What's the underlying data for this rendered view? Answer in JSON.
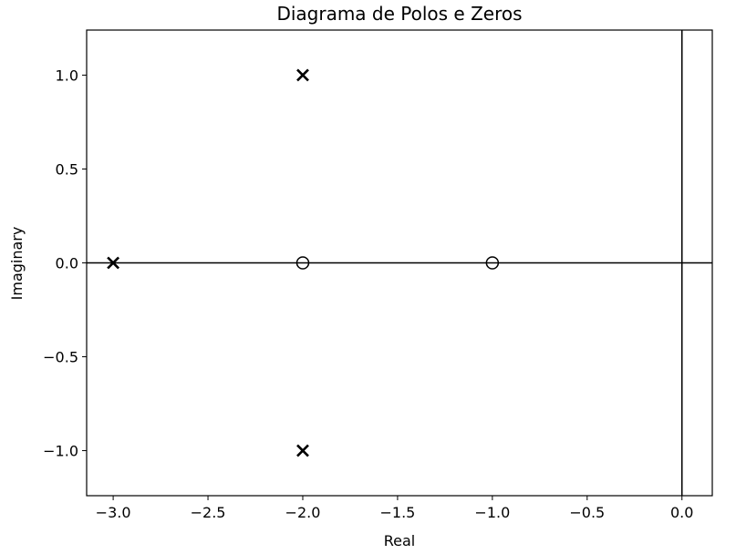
{
  "chart_data": {
    "type": "scatter",
    "title": "Diagrama de Polos e Zeros",
    "xlabel": "Real",
    "ylabel": "Imaginary",
    "xlim": [
      -3.14,
      0.16
    ],
    "ylim": [
      -1.24,
      1.24
    ],
    "xticks": [
      -3.0,
      -2.5,
      -2.0,
      -1.5,
      -1.0,
      -0.5,
      0.0
    ],
    "xtick_labels": [
      "−3.0",
      "−2.5",
      "−2.0",
      "−1.5",
      "−1.0",
      "−0.5",
      "0.0"
    ],
    "yticks": [
      -1.0,
      -0.5,
      0.0,
      0.5,
      1.0
    ],
    "ytick_labels": [
      "−1.0",
      "−0.5",
      "0.0",
      "0.5",
      "1.0"
    ],
    "grid": false,
    "reference_lines": {
      "horizontal_y": 0,
      "vertical_x": 0
    },
    "poles": [
      {
        "x": -3.0,
        "y": 0.0
      },
      {
        "x": -2.0,
        "y": 1.0
      },
      {
        "x": -2.0,
        "y": -1.0
      }
    ],
    "zeros": [
      {
        "x": -2.0,
        "y": 0.0
      },
      {
        "x": -1.0,
        "y": 0.0
      }
    ],
    "pole_marker": "x",
    "zero_marker": "o",
    "marker_color": "#000000"
  }
}
